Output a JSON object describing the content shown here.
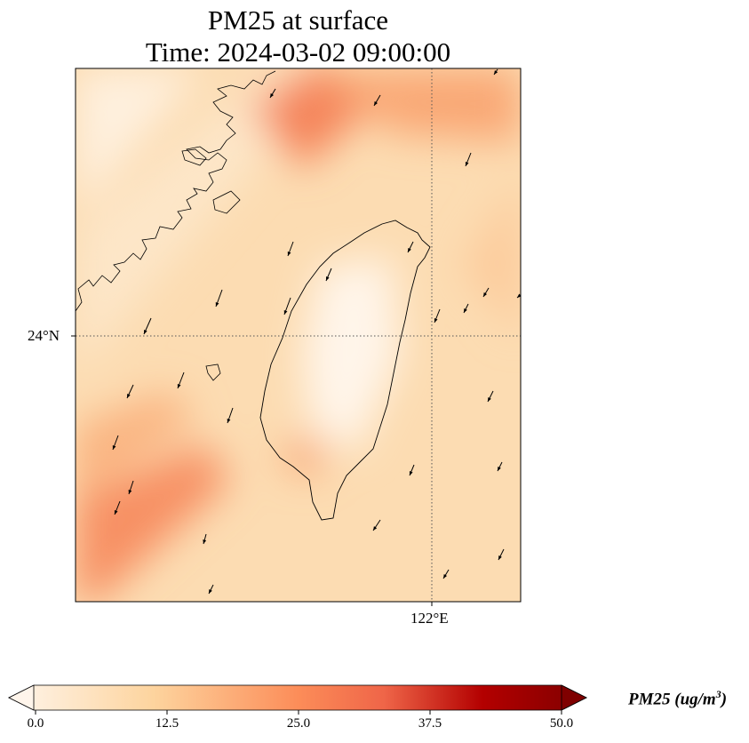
{
  "title": {
    "line1": "PM25 at surface",
    "line2": "Time: 2024-03-02 09:00:00"
  },
  "axes": {
    "lat_label": "24°N",
    "lon_label": "122°E"
  },
  "colorbar": {
    "label": "PM25 (ug/m",
    "label_sup": "3",
    "label_close": ")",
    "ticks": [
      "0.0",
      "12.5",
      "25.0",
      "37.5",
      "50.0"
    ],
    "range": [
      0,
      50
    ],
    "colors": [
      "#fff5eb",
      "#fdd49e",
      "#fc8d59",
      "#b30000",
      "#7f0000"
    ],
    "extend": "both"
  },
  "chart_data": {
    "type": "heatmap",
    "title": "PM25 at surface\nTime: 2024-03-02 09:00:00",
    "variable": "PM25",
    "units": "ug/m3",
    "xlabel": "",
    "ylabel": "",
    "xticks": [
      "122°E"
    ],
    "yticks": [
      "24°N"
    ],
    "clim": [
      0,
      50
    ]
  }
}
